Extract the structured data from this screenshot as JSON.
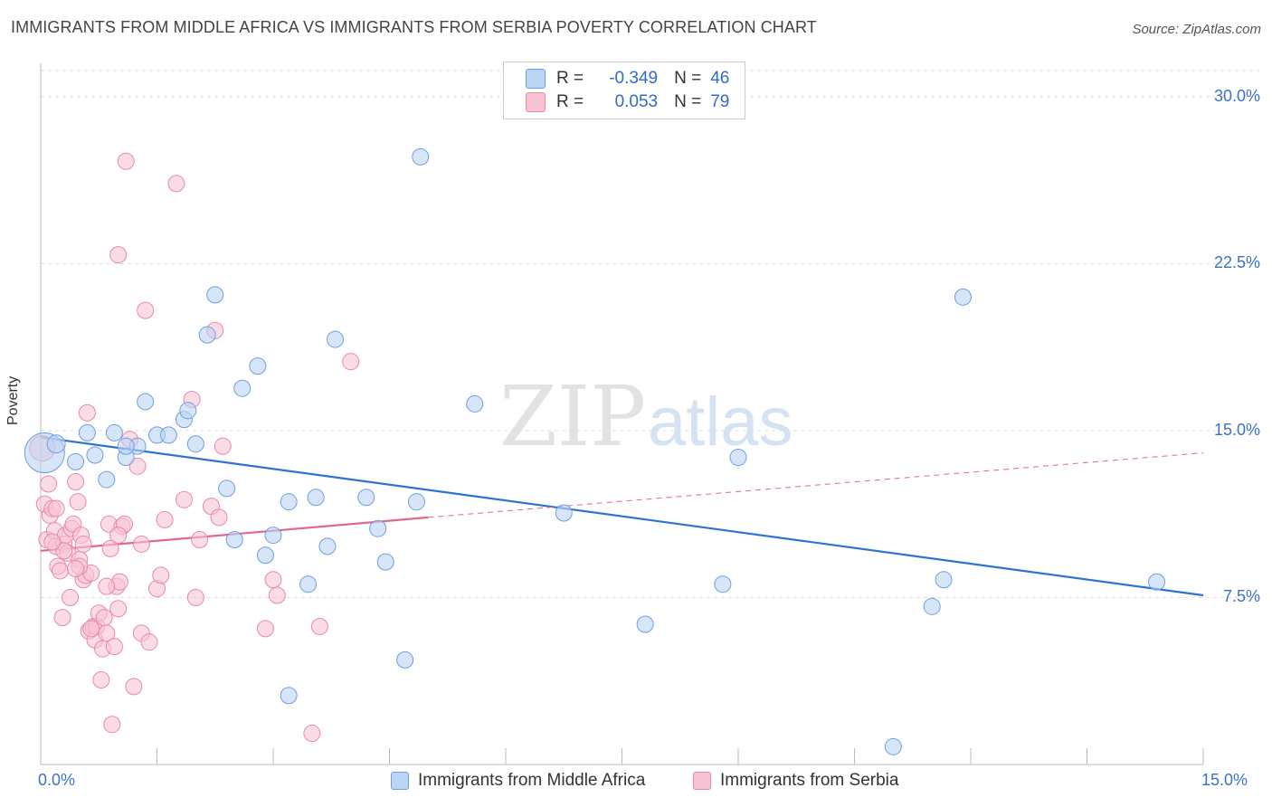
{
  "title": "IMMIGRANTS FROM MIDDLE AFRICA VS IMMIGRANTS FROM SERBIA POVERTY CORRELATION CHART",
  "source": "Source: ZipAtlas.com",
  "watermark": {
    "zip": "ZIP",
    "atlas": "atlas"
  },
  "colors": {
    "blue": "#6d9fe0",
    "blue_fill": "#bcd4f4",
    "blue_line": "#2e72d2",
    "pink": "#e889aa",
    "pink_fill": "#f8c3d5",
    "pink_line": "#e0678f",
    "tick_text": "#3b73c4",
    "grid": "#dddddd"
  },
  "legend": {
    "rows": [
      {
        "r_label": "R =",
        "r_value": "-0.349",
        "n_label": "N =",
        "n_value": "46"
      },
      {
        "r_label": "R =",
        "r_value": "0.053",
        "n_label": "N =",
        "n_value": "79"
      }
    ]
  },
  "bottom_legend": [
    "Immigrants from Middle Africa",
    "Immigrants from Serbia"
  ],
  "chart_data": {
    "type": "scatter",
    "title": "IMMIGRANTS FROM MIDDLE AFRICA VS IMMIGRANTS FROM SERBIA POVERTY CORRELATION CHART",
    "xlabel": "",
    "ylabel": "Poverty",
    "xlim": [
      0,
      15
    ],
    "ylim": [
      0,
      31.5
    ],
    "x_tick_labels": [
      "0.0%",
      "15.0%"
    ],
    "y_ticks": [
      7.5,
      15.0,
      22.5,
      30.0
    ],
    "y_tick_labels": [
      "7.5%",
      "15.0%",
      "22.5%",
      "30.0%"
    ],
    "series": [
      {
        "name": "Immigrants from Middle Africa",
        "r": -0.349,
        "n": 46,
        "trend": {
          "x": [
            0.0,
            15.0
          ],
          "y": [
            14.7,
            7.6
          ],
          "dashed_from": null
        },
        "points": [
          [
            0.05,
            14.0,
            22
          ],
          [
            0.2,
            14.4,
            10
          ],
          [
            0.45,
            13.6,
            9
          ],
          [
            0.6,
            14.9,
            9
          ],
          [
            0.7,
            13.9,
            9
          ],
          [
            0.85,
            12.8,
            9
          ],
          [
            0.95,
            14.9,
            9
          ],
          [
            1.1,
            13.8,
            9
          ],
          [
            1.25,
            14.3,
            9
          ],
          [
            1.35,
            16.3,
            9
          ],
          [
            1.5,
            14.8,
            9
          ],
          [
            1.65,
            14.8,
            9
          ],
          [
            1.85,
            15.5,
            9
          ],
          [
            1.9,
            15.9,
            9
          ],
          [
            2.0,
            14.4,
            9
          ],
          [
            2.15,
            19.3,
            9
          ],
          [
            2.25,
            21.1,
            9
          ],
          [
            2.4,
            12.4,
            9
          ],
          [
            2.5,
            10.1,
            9
          ],
          [
            2.6,
            16.9,
            9
          ],
          [
            2.8,
            17.9,
            9
          ],
          [
            2.9,
            9.4,
            9
          ],
          [
            3.0,
            10.3,
            9
          ],
          [
            3.2,
            11.8,
            9
          ],
          [
            3.45,
            8.1,
            9
          ],
          [
            3.55,
            12.0,
            9
          ],
          [
            3.7,
            9.8,
            9
          ],
          [
            3.8,
            19.1,
            9
          ],
          [
            4.2,
            12.0,
            9
          ],
          [
            4.35,
            10.6,
            9
          ],
          [
            4.45,
            9.1,
            9
          ],
          [
            4.7,
            4.7,
            9
          ],
          [
            4.85,
            11.8,
            9
          ],
          [
            4.9,
            27.3,
            9
          ],
          [
            5.6,
            16.2,
            9
          ],
          [
            6.75,
            11.3,
            9
          ],
          [
            7.8,
            6.3,
            9
          ],
          [
            8.8,
            8.1,
            9
          ],
          [
            9.0,
            13.8,
            9
          ],
          [
            3.2,
            3.1,
            9
          ],
          [
            11.0,
            0.8,
            9
          ],
          [
            11.5,
            7.1,
            9
          ],
          [
            11.65,
            8.3,
            9
          ],
          [
            11.9,
            21.0,
            9
          ],
          [
            14.4,
            8.2,
            9
          ],
          [
            1.1,
            14.3,
            9
          ]
        ]
      },
      {
        "name": "Immigrants from Serbia",
        "r": 0.053,
        "n": 79,
        "trend": {
          "x": [
            0.0,
            5.0,
            15.0
          ],
          "y": [
            9.6,
            11.1,
            14.0
          ],
          "dashed_from": 5.0
        },
        "points": [
          [
            0.02,
            14.2,
            14
          ],
          [
            0.05,
            11.7,
            9
          ],
          [
            0.08,
            10.1,
            9
          ],
          [
            0.1,
            12.6,
            9
          ],
          [
            0.12,
            11.2,
            9
          ],
          [
            0.15,
            11.5,
            9
          ],
          [
            0.18,
            10.5,
            9
          ],
          [
            0.2,
            9.8,
            9
          ],
          [
            0.22,
            8.9,
            9
          ],
          [
            0.25,
            8.7,
            9
          ],
          [
            0.28,
            6.6,
            9
          ],
          [
            0.3,
            9.9,
            9
          ],
          [
            0.32,
            10.3,
            9
          ],
          [
            0.35,
            9.5,
            9
          ],
          [
            0.38,
            7.5,
            9
          ],
          [
            0.4,
            10.6,
            9
          ],
          [
            0.42,
            10.8,
            9
          ],
          [
            0.45,
            12.7,
            9
          ],
          [
            0.48,
            11.8,
            9
          ],
          [
            0.5,
            9.2,
            9
          ],
          [
            0.52,
            10.3,
            9
          ],
          [
            0.55,
            8.3,
            9
          ],
          [
            0.58,
            8.5,
            9
          ],
          [
            0.6,
            15.8,
            9
          ],
          [
            0.62,
            6.0,
            9
          ],
          [
            0.65,
            8.6,
            9
          ],
          [
            0.68,
            6.2,
            9
          ],
          [
            0.7,
            5.6,
            9
          ],
          [
            0.72,
            6.2,
            9
          ],
          [
            0.75,
            6.8,
            9
          ],
          [
            0.78,
            3.8,
            9
          ],
          [
            0.8,
            5.2,
            9
          ],
          [
            0.82,
            6.6,
            9
          ],
          [
            0.85,
            5.9,
            9
          ],
          [
            0.88,
            10.8,
            9
          ],
          [
            0.9,
            9.7,
            9
          ],
          [
            0.92,
            1.8,
            9
          ],
          [
            0.95,
            5.3,
            9
          ],
          [
            0.98,
            8.0,
            9
          ],
          [
            1.0,
            7.0,
            9
          ],
          [
            1.02,
            8.2,
            9
          ],
          [
            1.05,
            10.7,
            9
          ],
          [
            1.08,
            10.8,
            9
          ],
          [
            1.1,
            27.1,
            9
          ],
          [
            1.15,
            14.6,
            9
          ],
          [
            1.2,
            3.5,
            9
          ],
          [
            1.25,
            13.4,
            9
          ],
          [
            1.3,
            5.9,
            9
          ],
          [
            1.35,
            20.4,
            9
          ],
          [
            1.4,
            5.5,
            9
          ],
          [
            1.5,
            7.9,
            9
          ],
          [
            1.55,
            8.5,
            9
          ],
          [
            1.6,
            11.0,
            9
          ],
          [
            1.75,
            26.1,
            9
          ],
          [
            1.85,
            11.9,
            9
          ],
          [
            1.95,
            16.4,
            9
          ],
          [
            2.0,
            7.5,
            9
          ],
          [
            2.05,
            10.1,
            9
          ],
          [
            2.2,
            11.6,
            9
          ],
          [
            2.25,
            19.5,
            9
          ],
          [
            2.3,
            11.1,
            9
          ],
          [
            2.35,
            14.3,
            9
          ],
          [
            1.0,
            22.9,
            9
          ],
          [
            2.9,
            6.1,
            9
          ],
          [
            3.0,
            8.3,
            9
          ],
          [
            3.05,
            7.6,
            9
          ],
          [
            3.5,
            1.4,
            9
          ],
          [
            3.6,
            6.2,
            9
          ],
          [
            4.0,
            18.1,
            9
          ],
          [
            0.5,
            8.9,
            9
          ],
          [
            0.3,
            9.6,
            9
          ],
          [
            0.2,
            11.5,
            9
          ],
          [
            0.15,
            10.0,
            9
          ],
          [
            0.45,
            8.8,
            9
          ],
          [
            0.55,
            9.9,
            9
          ],
          [
            0.65,
            6.1,
            9
          ],
          [
            0.85,
            8.0,
            9
          ],
          [
            1.0,
            10.3,
            9
          ],
          [
            1.3,
            9.9,
            9
          ]
        ]
      }
    ]
  }
}
